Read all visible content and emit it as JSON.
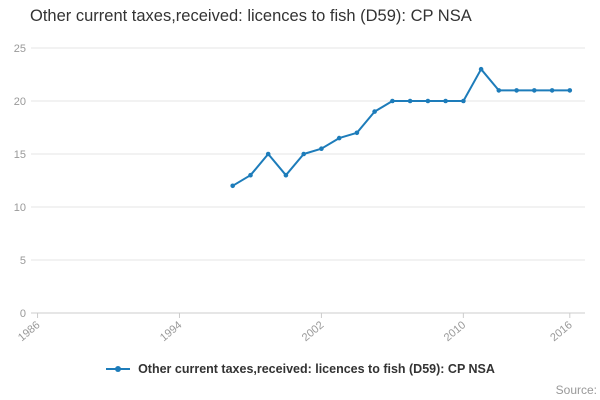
{
  "title": "Other current taxes,received: licences to fish (D59): CP NSA",
  "legend": {
    "label": "Other current taxes,received: licences to fish (D59): CP NSA"
  },
  "source_label": "Source:",
  "colors": {
    "line": "#1d7cba",
    "grid": "#e6e6e6",
    "axis_line": "#cccccc",
    "axis_text": "#999999",
    "title_text": "#333333",
    "legend_text": "#333333",
    "source_text": "#999999"
  },
  "chart_data": {
    "type": "line",
    "title": "Other current taxes,received: licences to fish (D59): CP NSA",
    "series_name": "Other current taxes,received: licences to fish (D59): CP NSA",
    "x": [
      1997,
      1998,
      1999,
      2000,
      2001,
      2002,
      2003,
      2004,
      2005,
      2006,
      2007,
      2008,
      2009,
      2010,
      2011,
      2012,
      2013,
      2014,
      2015,
      2016
    ],
    "values": [
      12,
      13,
      15,
      13,
      15,
      15.5,
      16.5,
      17,
      19,
      20,
      20,
      20,
      20,
      20,
      23,
      21,
      21,
      21,
      21,
      21
    ],
    "xlabel": "",
    "ylabel": "",
    "xlim": [
      1985.8,
      2016.8
    ],
    "ylim": [
      0,
      25
    ],
    "xticks": [
      1986,
      1994,
      2002,
      2010,
      2016
    ],
    "yticks": [
      0,
      5,
      10,
      15,
      20,
      25
    ],
    "grid": "horizontal-only",
    "legend_position": "bottom",
    "marker": "point"
  }
}
